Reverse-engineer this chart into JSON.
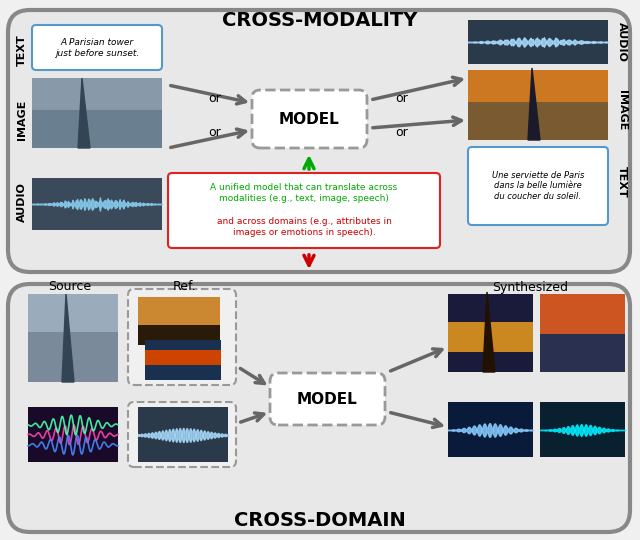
{
  "title_top": "CROSS-MODALITY",
  "title_bottom": "CROSS-DOMAIN",
  "model_label": "MODEL",
  "source_label": "Source",
  "ref_label": "Ref.",
  "synthesized_label": "Synthesized",
  "text_label_left": "TEXT",
  "image_label_left": "IMAGE",
  "audio_label_left": "AUDIO",
  "audio_label_right": "AUDIO",
  "image_label_right": "IMAGE",
  "text_label_right": "TEXT",
  "text_box_content": "A Parisian tower\njust before sunset.",
  "text_box_right": "Une serviette de Paris\ndans la belle lumière\ndu coucher du soleil.",
  "green_text": "A unified model that can translate across\nmodalities (e.g., text, image, speech)\n",
  "red_text": "and across domains (e.g., attributes in\nimages or emotions in speech).",
  "bg_color": "#f0f0f0",
  "outer_box_color": "#888888",
  "arrow_color": "#666666",
  "green_arrow_color": "#00aa00",
  "red_arrow_color": "#cc0000",
  "top_section_bg": "#e8e8e8",
  "bottom_section_bg": "#e8e8e8",
  "green_color": "#00aa00",
  "red_color": "#cc0000"
}
